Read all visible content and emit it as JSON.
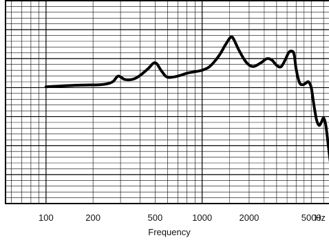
{
  "chart_data": {
    "type": "line",
    "title": "",
    "xlabel": "Frequency",
    "ylabel": "",
    "x_scale": "log",
    "xlim": [
      55,
      7800
    ],
    "ylim": [
      -6,
      1
    ],
    "x_ticks": [
      100,
      200,
      500,
      1000,
      2000,
      5000
    ],
    "x_tick_labels": [
      "100",
      "200",
      "500",
      "1000",
      "2000",
      "5000"
    ],
    "x_unit_label": "Hz",
    "grid": true,
    "series": [
      {
        "name": "",
        "x": [
          100,
          120,
          150,
          180,
          220,
          250,
          270,
          290,
          320,
          360,
          400,
          450,
          500,
          550,
          600,
          700,
          800,
          900,
          1000,
          1100,
          1200,
          1300,
          1400,
          1500,
          1550,
          1600,
          1700,
          1800,
          1900,
          2000,
          2100,
          2200,
          2400,
          2600,
          2800,
          3000,
          3200,
          3400,
          3600,
          3800,
          3900,
          4000,
          4200,
          4400,
          4600,
          4800,
          5000,
          5200,
          5400,
          5600,
          5800,
          6000,
          6200,
          6400,
          6600,
          6800,
          7000,
          7200,
          7400,
          7600,
          7800
        ],
        "y": [
          -1.97,
          -1.95,
          -1.92,
          -1.91,
          -1.9,
          -1.86,
          -1.78,
          -1.6,
          -1.72,
          -1.71,
          -1.58,
          -1.35,
          -1.14,
          -1.43,
          -1.64,
          -1.6,
          -1.5,
          -1.45,
          -1.4,
          -1.3,
          -1.1,
          -0.85,
          -0.55,
          -0.3,
          -0.25,
          -0.35,
          -0.65,
          -0.9,
          -1.1,
          -1.22,
          -1.27,
          -1.25,
          -1.13,
          -1.0,
          -1.05,
          -1.23,
          -1.28,
          -1.05,
          -0.78,
          -0.75,
          -0.9,
          -1.35,
          -1.82,
          -1.9,
          -1.85,
          -1.8,
          -2.0,
          -2.6,
          -3.1,
          -3.3,
          -3.2,
          -3.05,
          -3.3,
          -3.9,
          -4.5,
          -4.9,
          -5.05,
          -4.95,
          -4.65,
          -4.45,
          -4.3
        ]
      }
    ]
  }
}
